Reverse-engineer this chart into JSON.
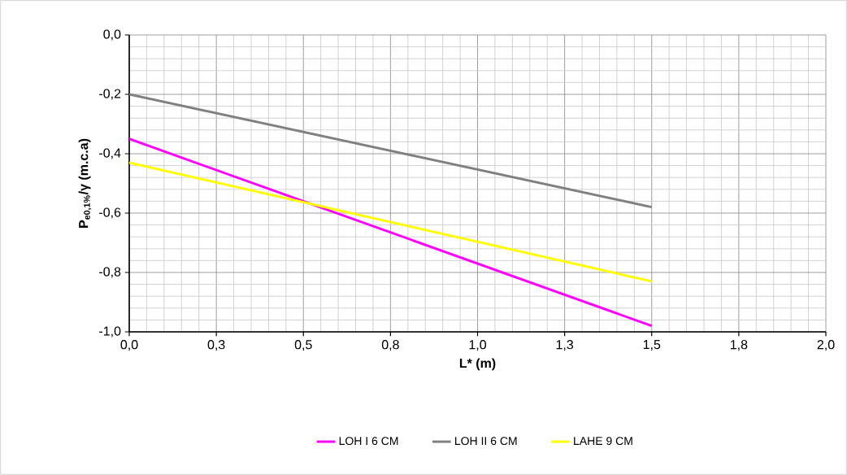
{
  "chart_data": {
    "type": "line",
    "xlabel": "L* (m)",
    "ylabel": "P$_{e0,1%}$/γ (m.c.a)",
    "xlim": [
      0,
      2
    ],
    "ylim": [
      -1,
      0
    ],
    "xticks": [
      {
        "value": 0,
        "label": "0,0"
      },
      {
        "value": 0.25,
        "label": "0,3"
      },
      {
        "value": 0.5,
        "label": "0,5"
      },
      {
        "value": 0.75,
        "label": "0,8"
      },
      {
        "value": 1,
        "label": "1,0"
      },
      {
        "value": 1.25,
        "label": "1,3"
      },
      {
        "value": 1.5,
        "label": "1,5"
      },
      {
        "value": 1.75,
        "label": "1,8"
      },
      {
        "value": 2,
        "label": "2,0"
      }
    ],
    "yticks": [
      {
        "value": 0,
        "label": "0,0"
      },
      {
        "value": -0.2,
        "label": "-0,2"
      },
      {
        "value": -0.4,
        "label": "-0,4"
      },
      {
        "value": -0.6,
        "label": "-0,6"
      },
      {
        "value": -0.8,
        "label": "-0,8"
      },
      {
        "value": -1,
        "label": "-1,0"
      }
    ],
    "grid": true,
    "legend": "bottom",
    "marker": "none",
    "line_style": "solid",
    "x": [
      0,
      1.5
    ],
    "series": [
      {
        "name": "LOH I 6 CM",
        "color": "#ff00ff",
        "values": [
          -0.35,
          -0.98
        ]
      },
      {
        "name": "LOH II 6 CM",
        "color": "#808080",
        "values": [
          -0.2,
          -0.58
        ]
      },
      {
        "name": "LAHE 9 CM",
        "color": "#ffff00",
        "values": [
          -0.43,
          -0.83
        ]
      }
    ]
  }
}
